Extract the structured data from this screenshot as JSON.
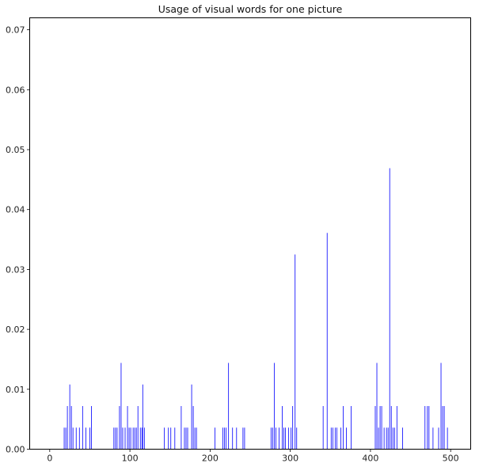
{
  "chart_data": {
    "type": "bar",
    "title": "Usage of visual words for one picture",
    "xlabel": "",
    "ylabel": "",
    "xlim": [
      -25,
      525
    ],
    "ylim": [
      0,
      0.072
    ],
    "x_ticks": [
      0,
      100,
      200,
      300,
      400,
      500
    ],
    "x_tick_labels": [
      "0",
      "100",
      "200",
      "300",
      "400",
      "500"
    ],
    "y_ticks": [
      0,
      0.01,
      0.02,
      0.03,
      0.04,
      0.05,
      0.06,
      0.07
    ],
    "y_tick_labels": [
      "0.00",
      "0.01",
      "0.02",
      "0.03",
      "0.04",
      "0.05",
      "0.06",
      "0.07"
    ],
    "grid": false,
    "bar_color": "#0000ff",
    "x": [
      18,
      20,
      22,
      25,
      27,
      29,
      33,
      37,
      41,
      45,
      50,
      52,
      80,
      82,
      84,
      87,
      89,
      91,
      94,
      97,
      99,
      101,
      104,
      106,
      108,
      110,
      113,
      115,
      116,
      118,
      143,
      148,
      151,
      156,
      164,
      168,
      170,
      172,
      177,
      179,
      181,
      183,
      206,
      216,
      218,
      220,
      223,
      228,
      233,
      241,
      243,
      276,
      278,
      280,
      282,
      286,
      290,
      292,
      294,
      298,
      301,
      303,
      306,
      308,
      341,
      346,
      351,
      353,
      356,
      358,
      363,
      366,
      370,
      376,
      406,
      408,
      410,
      412,
      414,
      417,
      420,
      422,
      424,
      426,
      428,
      430,
      433,
      440,
      468,
      471,
      473,
      478,
      485,
      488,
      490,
      492,
      496
    ],
    "values": [
      0.0036,
      0.0036,
      0.0072,
      0.0108,
      0.0072,
      0.0036,
      0.0036,
      0.0036,
      0.0072,
      0.0036,
      0.0036,
      0.0072,
      0.0036,
      0.0036,
      0.0036,
      0.0072,
      0.0144,
      0.0036,
      0.0036,
      0.0072,
      0.0036,
      0.0036,
      0.0036,
      0.0036,
      0.0036,
      0.0072,
      0.0036,
      0.0036,
      0.0108,
      0.0036,
      0.0036,
      0.0036,
      0.0036,
      0.0036,
      0.0072,
      0.0036,
      0.0036,
      0.0036,
      0.0108,
      0.0072,
      0.0036,
      0.0036,
      0.0036,
      0.0036,
      0.0036,
      0.0036,
      0.0144,
      0.0036,
      0.0036,
      0.0036,
      0.0036,
      0.0036,
      0.0036,
      0.0144,
      0.0036,
      0.0036,
      0.0072,
      0.0036,
      0.0036,
      0.0036,
      0.0036,
      0.0072,
      0.0325,
      0.0036,
      0.0072,
      0.0361,
      0.0036,
      0.0036,
      0.0036,
      0.0036,
      0.0036,
      0.0072,
      0.0036,
      0.0072,
      0.0072,
      0.0144,
      0.0036,
      0.0072,
      0.0072,
      0.0036,
      0.0036,
      0.0036,
      0.0469,
      0.0072,
      0.0036,
      0.0036,
      0.0072,
      0.0036,
      0.0072,
      0.0072,
      0.0072,
      0.0036,
      0.0036,
      0.0144,
      0.0072,
      0.0072,
      0.0036
    ]
  }
}
